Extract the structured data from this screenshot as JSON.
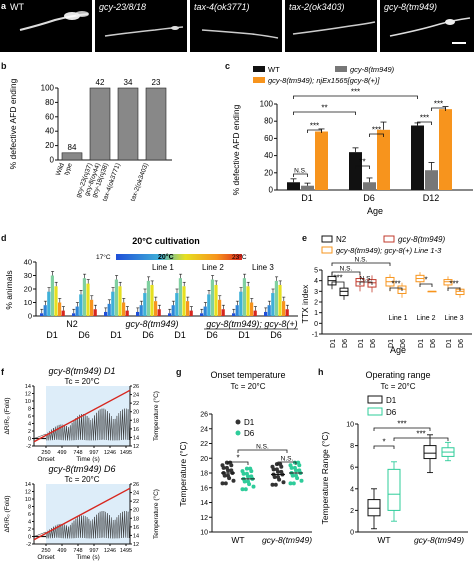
{
  "panel_labels": [
    "a",
    "b",
    "c",
    "d",
    "e",
    "f",
    "g",
    "h"
  ],
  "a": {
    "images": [
      "WT",
      "gcy-23/8/18",
      "tax-4(ok3771)",
      "tax-2(ok3403)",
      "gcy-8(tm949)"
    ]
  },
  "b": {
    "chart_data": {
      "type": "bar",
      "ylabel": "% defective AFD ending",
      "ylim": [
        0,
        100
      ],
      "yticks": [
        0,
        20,
        40,
        60,
        80,
        100
      ],
      "categories": [
        "Wild type",
        "gcy-23(nj37) gcy-8(oy44) gcy-18(nj38)",
        "tax-4(ok3771)",
        "tax-2(ok3403)"
      ],
      "values": [
        10,
        100,
        100,
        100
      ],
      "n_labels": [
        "84",
        "42",
        "34",
        "23"
      ]
    }
  },
  "c": {
    "chart_data": {
      "type": "bar",
      "xlabel": "Age",
      "ylabel": "% defective AFD ending",
      "ylim": [
        0,
        100
      ],
      "yticks": [
        0,
        20,
        40,
        60,
        80,
        100
      ],
      "categories": [
        "D1",
        "D6",
        "D12"
      ],
      "series": [
        {
          "name": "WT",
          "color": "#111111",
          "values": [
            9,
            44,
            75
          ],
          "err": [
            4,
            5,
            3
          ]
        },
        {
          "name": "gcy-8(tm949)",
          "color": "#777777",
          "values": [
            5,
            9,
            23
          ],
          "err": [
            3,
            5,
            9
          ]
        },
        {
          "name": "gcy-8(tm949); njEx1565[gcy-8(+)]",
          "color": "#f7941d",
          "values": [
            68,
            70,
            94
          ],
          "err": [
            3,
            9,
            3
          ]
        }
      ],
      "sig": [
        "N.S.",
        "***",
        "**",
        "***",
        "**",
        "***",
        "***",
        "***"
      ]
    }
  },
  "d": {
    "chart_data": {
      "type": "bar",
      "title": "20°C cultivation",
      "ylabel": "% animals",
      "ylim": [
        0,
        40
      ],
      "yticks": [
        0,
        10,
        20,
        30,
        40
      ],
      "scale_labels": [
        "17°C",
        "20°C",
        "23°C"
      ],
      "group_labels": [
        "N2",
        "gcy-8(tm949)",
        "gcy-8(tm949); gcy-8(+)"
      ],
      "ages": [
        "D1",
        "D6",
        "D1",
        "D6"
      ],
      "line_labels": [
        "Line 1",
        "Line 2",
        "Line 3"
      ],
      "groups": [
        [
          2,
          8,
          18,
          30,
          22,
          10,
          4
        ],
        [
          2,
          7,
          16,
          28,
          24,
          12,
          5
        ],
        [
          3,
          9,
          18,
          27,
          22,
          10,
          4
        ],
        [
          3,
          8,
          17,
          26,
          23,
          11,
          5
        ],
        [
          2,
          8,
          17,
          28,
          22,
          11,
          4
        ],
        [
          2,
          7,
          16,
          27,
          23,
          12,
          5
        ],
        [
          2,
          8,
          18,
          28,
          22,
          10,
          4
        ],
        [
          3,
          8,
          17,
          26,
          23,
          11,
          5
        ]
      ]
    }
  },
  "e": {
    "chart_data": {
      "type": "box",
      "xlabel": "Age",
      "ylabel": "TTX index",
      "ylim": [
        -1,
        5
      ],
      "yticks": [
        -1,
        0,
        1,
        2,
        3,
        4,
        5
      ],
      "legend": [
        "N2",
        "gcy-8(tm949)",
        "gcy-8(tm949); gcy-8(+) Line 1-3"
      ],
      "age_labels": [
        "D1",
        "D6",
        "D1",
        "D6",
        "D1",
        "D6",
        "D1",
        "D6",
        "D1",
        "D6"
      ],
      "line_labels": [
        "Line 1",
        "Line 2",
        "Line 3"
      ],
      "sig": [
        "***",
        "N.S.",
        "N.S.",
        "N.S.",
        "***",
        "*",
        "***"
      ],
      "boxes": [
        {
          "q1": 3.6,
          "median": 4.0,
          "q3": 4.4,
          "min": 3.2,
          "max": 4.8
        },
        {
          "q1": 2.6,
          "median": 3.0,
          "q3": 3.3,
          "min": 2.2,
          "max": 3.6
        },
        {
          "q1": 3.5,
          "median": 3.9,
          "q3": 4.2,
          "min": 3.0,
          "max": 4.6
        },
        {
          "q1": 3.4,
          "median": 3.8,
          "q3": 4.1,
          "min": 2.9,
          "max": 4.5
        },
        {
          "q1": 3.5,
          "median": 3.9,
          "q3": 4.3,
          "min": 3.0,
          "max": 4.6
        },
        {
          "q1": 2.8,
          "median": 3.2,
          "q3": 3.5,
          "min": 2.4,
          "max": 3.8
        },
        {
          "q1": 3.9,
          "median": 4.2,
          "q3": 4.5,
          "min": 3.6,
          "max": 4.8
        },
        {
          "q1": 3.0,
          "median": 3.0,
          "q3": 3.0,
          "min": 3.0,
          "max": 3.0
        },
        {
          "q1": 3.6,
          "median": 3.9,
          "q3": 4.1,
          "min": 3.2,
          "max": 4.4
        },
        {
          "q1": 2.7,
          "median": 3.0,
          "q3": 3.2,
          "min": 2.4,
          "max": 3.4
        }
      ]
    }
  },
  "f": {
    "chart_data": [
      {
        "type": "line",
        "title": "gcy-8(tm949) D1",
        "subtitle": "Tc = 20°C",
        "xlabel": "Time (s)",
        "ylabel": "ΔR/R₀ (Fold)",
        "ylabel_right": "Temperature (°C)",
        "yticks": [
          -2,
          0,
          2,
          4,
          6,
          8,
          10,
          12,
          14
        ],
        "yticks_right": [
          12,
          14,
          16,
          18,
          20,
          22,
          24,
          26
        ],
        "xticks": [
          "250",
          "499",
          "748",
          "997",
          "1246",
          "1495"
        ],
        "onset_label": "Onset",
        "temperature_range": [
          12,
          26
        ]
      },
      {
        "type": "line",
        "title": "gcy-8(tm949) D6",
        "subtitle": "Tc = 20°C",
        "xlabel": "Time (s)",
        "ylabel": "ΔR/R₀ (Fold)",
        "ylabel_right": "Temperature (°C)",
        "yticks": [
          -2,
          0,
          2,
          4,
          6,
          8,
          10,
          12,
          14
        ],
        "yticks_right": [
          12,
          14,
          16,
          18,
          20,
          22,
          24,
          26
        ],
        "xticks": [
          "250",
          "499",
          "748",
          "997",
          "1246",
          "1495"
        ],
        "onset_label": "Onset",
        "temperature_range": [
          12,
          26
        ]
      }
    ]
  },
  "g": {
    "chart_data": {
      "type": "scatter",
      "title": "Onset temperature",
      "subtitle": "Tc = 20°C",
      "ylabel": "Temperature (°C)",
      "ylim": [
        10,
        26
      ],
      "yticks": [
        10,
        12,
        14,
        16,
        18,
        20,
        22,
        24,
        26
      ],
      "categories": [
        "WT",
        "gcy-8(tm949)"
      ],
      "legend": [
        "D1",
        "D6"
      ],
      "means": [
        [
          18.0,
          17.2
        ],
        [
          17.8,
          18.0
        ]
      ],
      "sig": [
        "*",
        "N.S.",
        "N.S."
      ]
    }
  },
  "h": {
    "chart_data": {
      "type": "box",
      "title": "Operating range",
      "subtitle": "Tc = 20°C",
      "ylabel": "Temperature Range (°C)",
      "ylim": [
        0,
        10
      ],
      "yticks": [
        0,
        2,
        4,
        6,
        8,
        10
      ],
      "categories": [
        "WT",
        "gcy-8(tm949)"
      ],
      "legend": [
        "D1",
        "D6"
      ],
      "sig": [
        "*",
        "***",
        "***"
      ],
      "boxes": [
        {
          "q1": 1.5,
          "median": 2.2,
          "q3": 3.0,
          "min": 0.3,
          "max": 4.0
        },
        {
          "q1": 2.0,
          "median": 3.5,
          "q3": 5.8,
          "min": 1.0,
          "max": 6.5
        },
        {
          "q1": 6.8,
          "median": 7.3,
          "q3": 8.0,
          "min": 5.5,
          "max": 9.0
        },
        {
          "q1": 7.0,
          "median": 7.4,
          "q3": 7.8,
          "min": 6.6,
          "max": 8.3
        }
      ]
    }
  }
}
